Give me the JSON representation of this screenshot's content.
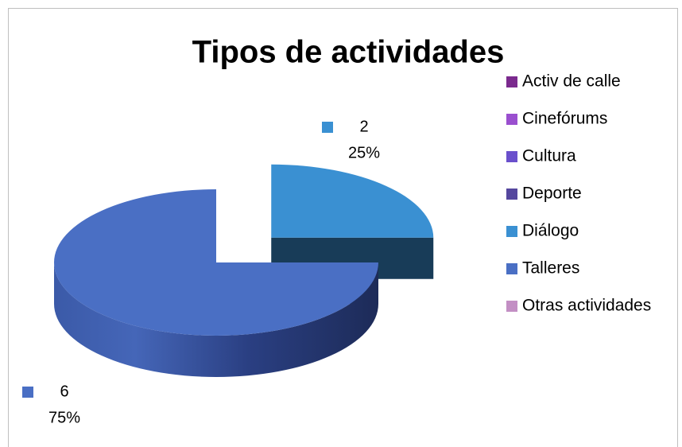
{
  "chart_data": {
    "type": "pie3d",
    "title": "Tipos de actividades",
    "categories": [
      "Activ de calle",
      "Cinefórums",
      "Cultura",
      "Deporte",
      "Diálogo",
      "Talleres",
      "Otras actividades"
    ],
    "values": [
      0,
      0,
      0,
      0,
      2,
      6,
      0
    ],
    "percent_labels": [
      null,
      null,
      null,
      null,
      "25%",
      "75%",
      null
    ],
    "colors": [
      "#7b2a8e",
      "#9a4fcf",
      "#6a50cc",
      "#55479e",
      "#3a90d2",
      "#4a6fc4",
      "#c38fc4"
    ],
    "legend": "right"
  }
}
